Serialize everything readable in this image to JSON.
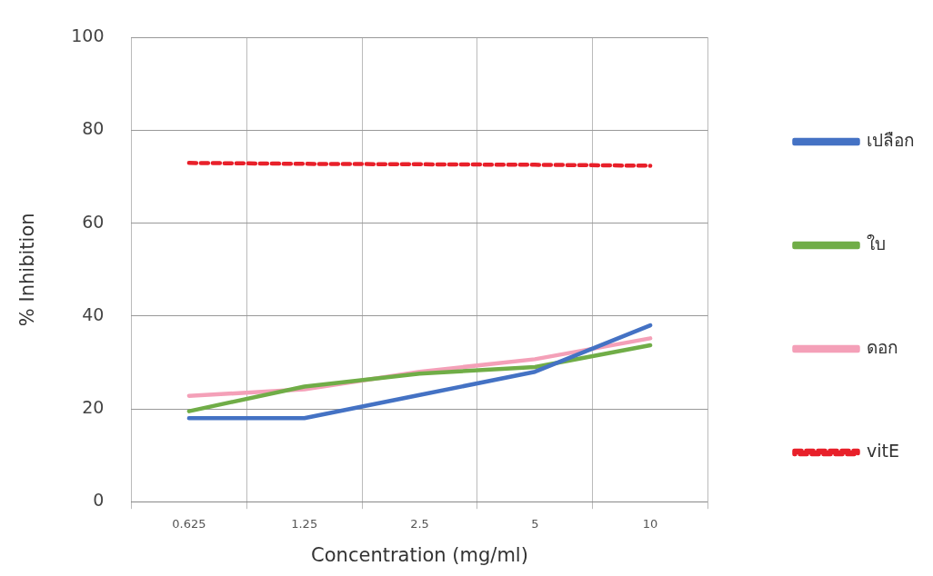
{
  "chart_data": {
    "type": "line",
    "xlabel": "Concentration (mg/ml)",
    "ylabel": "% Inhibition",
    "categories": [
      "0.625",
      "1.25",
      "2.5",
      "5",
      "10"
    ],
    "series": [
      {
        "name": "เปลือก",
        "color": "#4472c4",
        "values": [
          18,
          18,
          23,
          28,
          38
        ]
      },
      {
        "name": "ใบ",
        "color": "#70ad47",
        "values": [
          19.5,
          24.8,
          27.6,
          29,
          33.7
        ]
      },
      {
        "name": "ดอก",
        "color": "#f4a0b8",
        "values": [
          22.8,
          24.2,
          28,
          30.7,
          35.2
        ]
      },
      {
        "name": "vitE",
        "color": "#e8202a",
        "values": [
          73,
          72.8,
          72.7,
          72.6,
          72.4
        ],
        "line_style": "dashed"
      }
    ],
    "ylim": [
      0,
      100
    ],
    "yticks": [
      0,
      20,
      40,
      60,
      80,
      100
    ],
    "grid": true,
    "legend": "right",
    "marker": "none"
  }
}
